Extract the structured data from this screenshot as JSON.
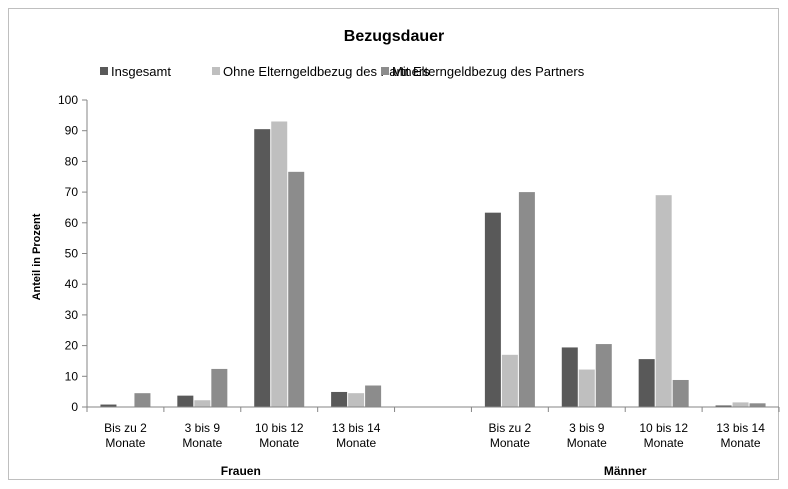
{
  "chart_data": {
    "type": "bar",
    "title": "Bezugsdauer",
    "ylabel": "Anteil in Prozent",
    "ylim": [
      0,
      100
    ],
    "yticks": [
      0,
      10,
      20,
      30,
      40,
      50,
      60,
      70,
      80,
      90,
      100
    ],
    "grid": false,
    "legend_position": "top",
    "groups": [
      {
        "label": "Frauen",
        "categories": [
          [
            "Bis zu 2",
            "Monate"
          ],
          [
            "3 bis 9",
            "Monate"
          ],
          [
            "10 bis 12",
            "Monate"
          ],
          [
            "13 bis 14",
            "Monate"
          ]
        ]
      },
      {
        "label": "Männer",
        "categories": [
          [
            "Bis zu 2",
            "Monate"
          ],
          [
            "3 bis 9",
            "Monate"
          ],
          [
            "10 bis 12",
            "Monate"
          ],
          [
            "13 bis 14",
            "Monate"
          ]
        ]
      }
    ],
    "series": [
      {
        "name": "Insgesamt",
        "color": "#595959",
        "values": [
          0.8,
          3.7,
          90.5,
          4.9,
          null,
          63.3,
          19.4,
          15.6,
          0.5
        ]
      },
      {
        "name": "Ohne Elterngeldbezug des Partners",
        "color": "#bfbfbf",
        "values": [
          0.1,
          2.2,
          93.0,
          4.5,
          null,
          17.0,
          12.2,
          69.0,
          1.5
        ]
      },
      {
        "name": "Mit Elterngeldbezug des Partners",
        "color": "#8c8c8c",
        "values": [
          4.5,
          12.4,
          76.6,
          7.0,
          null,
          70.0,
          20.5,
          8.8,
          1.2
        ]
      }
    ]
  }
}
